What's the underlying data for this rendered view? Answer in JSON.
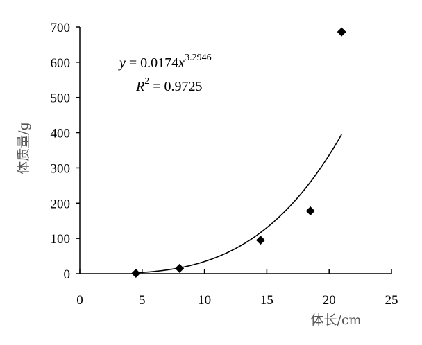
{
  "chart_data": {
    "type": "scatter",
    "xlabel": "体长/cm",
    "ylabel": "体质量/g",
    "xlim": [
      0,
      25
    ],
    "ylim": [
      0,
      700
    ],
    "x_ticks": [
      "0",
      "5",
      "10",
      "15",
      "20",
      "25"
    ],
    "y_ticks": [
      "0",
      "100",
      "200",
      "300",
      "400",
      "500",
      "600",
      "700"
    ],
    "x_tick_values": [
      0,
      5,
      10,
      15,
      20,
      25
    ],
    "y_tick_values": [
      0,
      100,
      200,
      300,
      400,
      500,
      600,
      700
    ],
    "grid": false,
    "points": [
      {
        "x": 4.5,
        "y": 1
      },
      {
        "x": 8.0,
        "y": 15
      },
      {
        "x": 14.5,
        "y": 95
      },
      {
        "x": 18.5,
        "y": 178
      },
      {
        "x": 21.0,
        "y": 686
      }
    ],
    "trendline": {
      "type": "power",
      "coefficient": 0.0174,
      "exponent": 3.2946,
      "x_range": [
        4.5,
        21.0
      ]
    },
    "equation": {
      "y_var": "y",
      "equals_coef": " = 0.0174",
      "x_var": "x",
      "exponent": "3.2946",
      "r_var": "R",
      "r_exp": "2",
      "r_value": " = 0.9725"
    },
    "colors": {
      "marker": "#000000",
      "line": "#000000",
      "axis": "#000000"
    }
  }
}
